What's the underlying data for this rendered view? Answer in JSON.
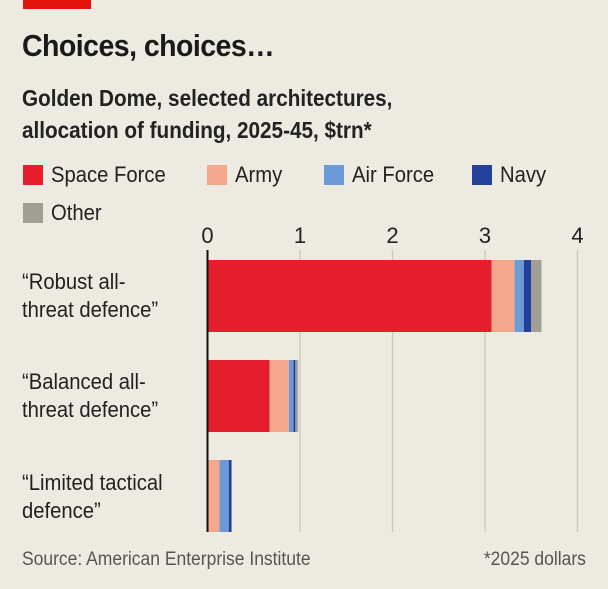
{
  "header": {
    "title": "Choices, choices…",
    "subtitle_line1": "Golden Dome, selected architectures,",
    "subtitle_line2": "allocation of funding, 2025-45, $trn*"
  },
  "colors": {
    "brand_red": "#E3120B",
    "background": "#ECEAE1"
  },
  "chart_data": {
    "type": "bar",
    "orientation": "horizontal",
    "stacked": true,
    "title": "Choices, choices…",
    "subtitle": "Golden Dome, selected architectures, allocation of funding, 2025-45, $trn*",
    "xlabel": "",
    "ylabel": "",
    "xlim": [
      0,
      4
    ],
    "xticks": [
      0,
      1,
      2,
      3,
      4
    ],
    "xtick_labels": [
      "0",
      "1",
      "2",
      "3",
      "4"
    ],
    "grid": true,
    "legend_position": "top-left",
    "categories": [
      "“Robust all-\nthreat defence”",
      "“Balanced all-\nthreat defence”",
      "“Limited tactical\ndefence”"
    ],
    "series": [
      {
        "name": "Space Force",
        "color": "#E61E2B",
        "values": [
          3.07,
          0.67,
          0.0
        ]
      },
      {
        "name": "Army",
        "color": "#F6A68B",
        "values": [
          0.25,
          0.21,
          0.13
        ]
      },
      {
        "name": "Air Force",
        "color": "#6A9BD6",
        "values": [
          0.1,
          0.05,
          0.1
        ]
      },
      {
        "name": "Navy",
        "color": "#23409A",
        "values": [
          0.08,
          0.02,
          0.03
        ]
      },
      {
        "name": "Other",
        "color": "#A09F95",
        "values": [
          0.11,
          0.03,
          0.0
        ]
      }
    ]
  },
  "footer": {
    "source": "Source: American Enterprise Institute",
    "note": "*2025 dollars"
  }
}
